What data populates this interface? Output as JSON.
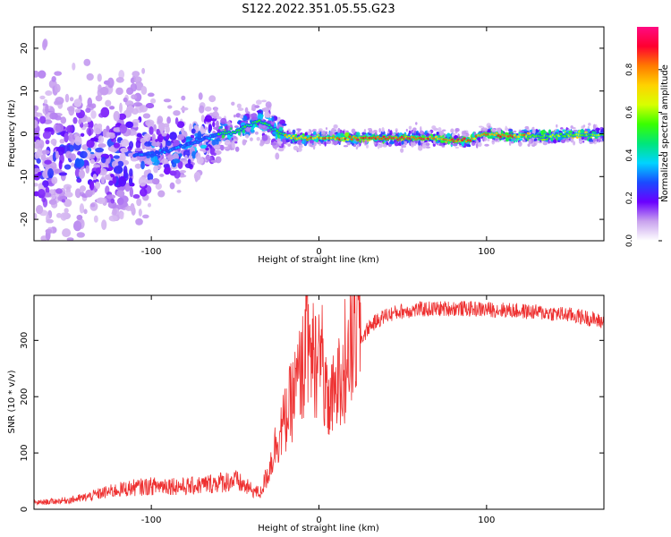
{
  "figure": {
    "title": "S122.2022.351.05.55.G23"
  },
  "chart_data": [
    {
      "type": "heatmap",
      "xlabel": "Height of straight line (km)",
      "ylabel": "Frequency (Hz)",
      "xlim": [
        -170,
        170
      ],
      "ylim": [
        -25,
        25
      ],
      "x_ticks": [
        -100,
        0,
        100
      ],
      "y_ticks": [
        -20,
        -10,
        0,
        10,
        20
      ],
      "grid": false,
      "ridge": {
        "x": [
          -110,
          -90,
          -75,
          -60,
          -50,
          -42,
          -36,
          -30,
          -25,
          -20,
          -10,
          0,
          20,
          50,
          70,
          80,
          90,
          95,
          100,
          110,
          130,
          150,
          170
        ],
        "y": [
          -5,
          -4,
          -2,
          0,
          0.5,
          2,
          3,
          2,
          0.5,
          -0.5,
          -1,
          -1,
          -1,
          -1,
          -1,
          -1.5,
          -1.5,
          -0.5,
          0,
          -0.5,
          -0.5,
          -0.3,
          -0.2
        ]
      },
      "colorbar": {
        "label": "Normalized spectral amplitude",
        "range": [
          0,
          1
        ],
        "ticks": [
          "0.0",
          "0.2",
          "0.4",
          "0.6",
          "0.8"
        ],
        "tick_values": [
          0,
          0.2,
          0.4,
          0.6,
          0.8
        ],
        "stops": [
          "#ffffff",
          "#c9a3ee",
          "#6a00ff",
          "#1a4bff",
          "#00d4ff",
          "#00e67a",
          "#39ff00",
          "#d8ff00",
          "#ffd200",
          "#ff7a00",
          "#ff0030",
          "#ff0a82"
        ]
      }
    },
    {
      "type": "line",
      "xlabel": "Height of straight line (km)",
      "ylabel": "SNR (10 * v/v)",
      "xlim": [
        -170,
        170
      ],
      "ylim": [
        0,
        380
      ],
      "x_ticks": [
        -100,
        0,
        100
      ],
      "y_ticks": [
        0,
        100,
        200,
        300
      ],
      "grid": false,
      "color": "#ee3030",
      "series": [
        {
          "x": [
            -170,
            -160,
            -150,
            -140,
            -130,
            -120,
            -110,
            -100,
            -90,
            -80,
            -70,
            -60,
            -50,
            -40,
            -35,
            -30,
            -25,
            -20,
            -15,
            -10,
            -5,
            0,
            5,
            10,
            15,
            20,
            25,
            30,
            40,
            50,
            60,
            70,
            80,
            90,
            100,
            110,
            120,
            130,
            140,
            150,
            160,
            170
          ],
          "values": [
            10,
            12,
            14,
            18,
            25,
            30,
            34,
            36,
            38,
            35,
            38,
            42,
            45,
            30,
            25,
            60,
            110,
            140,
            180,
            220,
            240,
            230,
            160,
            180,
            220,
            260,
            300,
            325,
            345,
            352,
            355,
            356,
            357,
            356,
            355,
            354,
            352,
            350,
            348,
            345,
            340,
            332
          ]
        }
      ]
    }
  ]
}
